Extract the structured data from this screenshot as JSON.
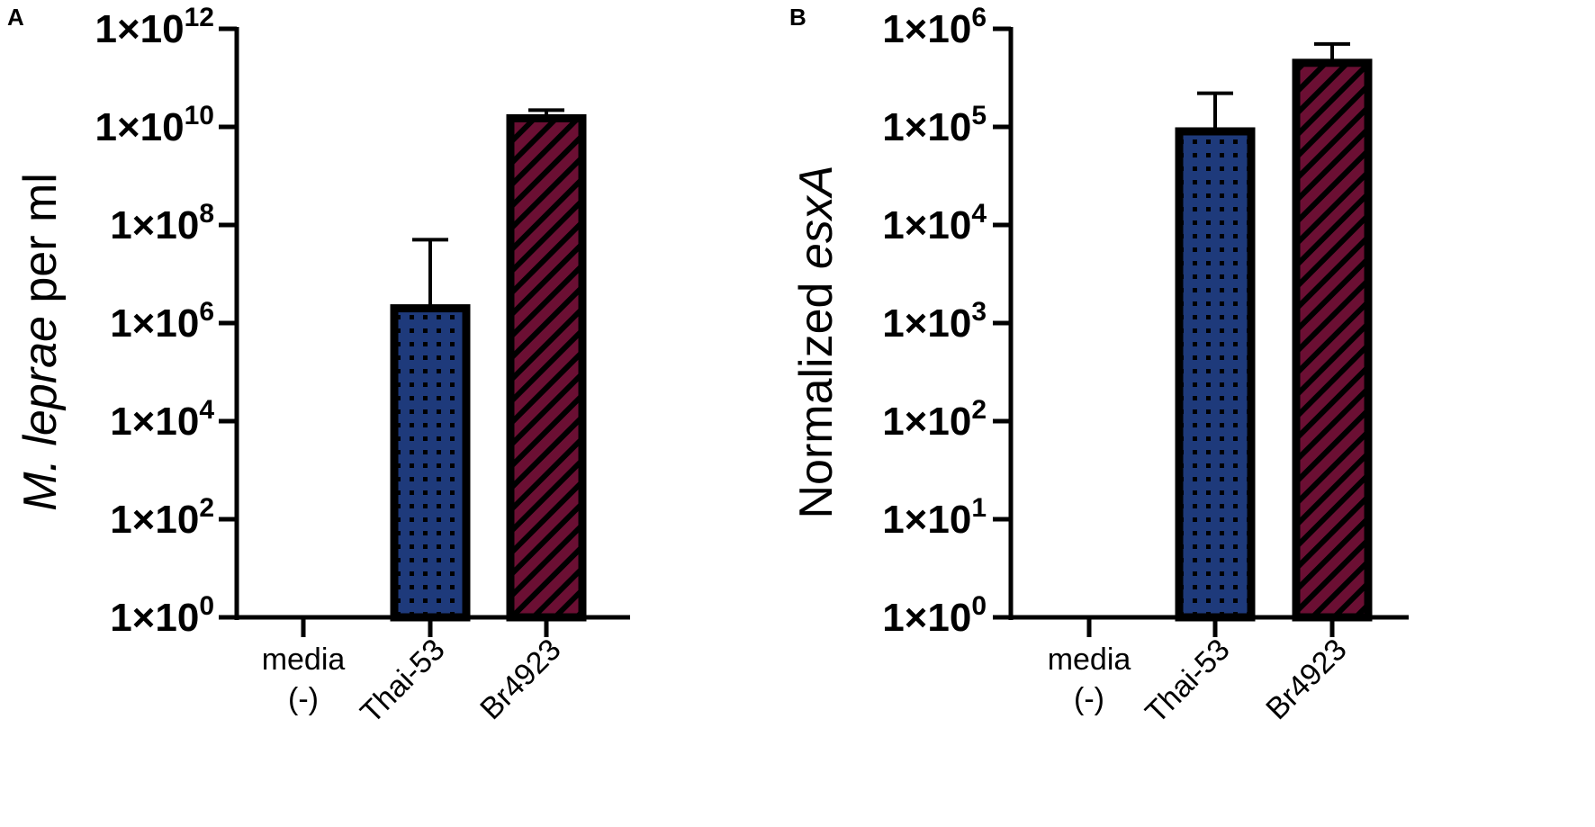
{
  "colors": {
    "thai53": "#1e3a7b",
    "br4923": "#6b0f33",
    "axis": "#000000"
  },
  "chart_data": [
    {
      "type": "bar",
      "panel": "A",
      "yscale": "log",
      "ylabel_italic": "M. leprae",
      "ylabel_rest": " per ml",
      "categories": [
        {
          "lines": [
            "media",
            "(-)"
          ],
          "rotated": false
        },
        {
          "lines": [
            "Thai-53"
          ],
          "rotated": true
        },
        {
          "lines": [
            "Br4923"
          ],
          "rotated": true
        }
      ],
      "values": [
        0,
        2000000,
        15000000000
      ],
      "errors_upper": [
        null,
        50000000,
        22000000000
      ],
      "ylim": [
        1,
        1000000000000
      ],
      "ticks": [
        {
          "value": 1,
          "base": "1×10",
          "exp": "0"
        },
        {
          "value": 100,
          "base": "1×10",
          "exp": "2"
        },
        {
          "value": 10000,
          "base": "1×10",
          "exp": "4"
        },
        {
          "value": 1000000,
          "base": "1×10",
          "exp": "6"
        },
        {
          "value": 100000000,
          "base": "1×10",
          "exp": "8"
        },
        {
          "value": 10000000000,
          "base": "1×10",
          "exp": "10"
        },
        {
          "value": 1000000000000,
          "base": "1×10",
          "exp": "12"
        }
      ],
      "patterns": [
        "none",
        "dots",
        "stripes"
      ]
    },
    {
      "type": "bar",
      "panel": "B",
      "yscale": "log",
      "ylabel_plain": "Normalized ",
      "ylabel_italic": "esxA",
      "categories": [
        {
          "lines": [
            "media",
            "(-)"
          ],
          "rotated": false
        },
        {
          "lines": [
            "Thai-53"
          ],
          "rotated": true
        },
        {
          "lines": [
            "Br4923"
          ],
          "rotated": true
        }
      ],
      "values": [
        0,
        90000,
        450000
      ],
      "errors_upper": [
        null,
        220000,
        700000
      ],
      "ylim": [
        1,
        1000000
      ],
      "ticks": [
        {
          "value": 1,
          "base": "1×10",
          "exp": "0"
        },
        {
          "value": 10,
          "base": "1×10",
          "exp": "1"
        },
        {
          "value": 100,
          "base": "1×10",
          "exp": "2"
        },
        {
          "value": 1000,
          "base": "1×10",
          "exp": "3"
        },
        {
          "value": 10000,
          "base": "1×10",
          "exp": "4"
        },
        {
          "value": 100000,
          "base": "1×10",
          "exp": "5"
        },
        {
          "value": 1000000,
          "base": "1×10",
          "exp": "6"
        }
      ],
      "patterns": [
        "none",
        "dots",
        "stripes"
      ]
    }
  ]
}
